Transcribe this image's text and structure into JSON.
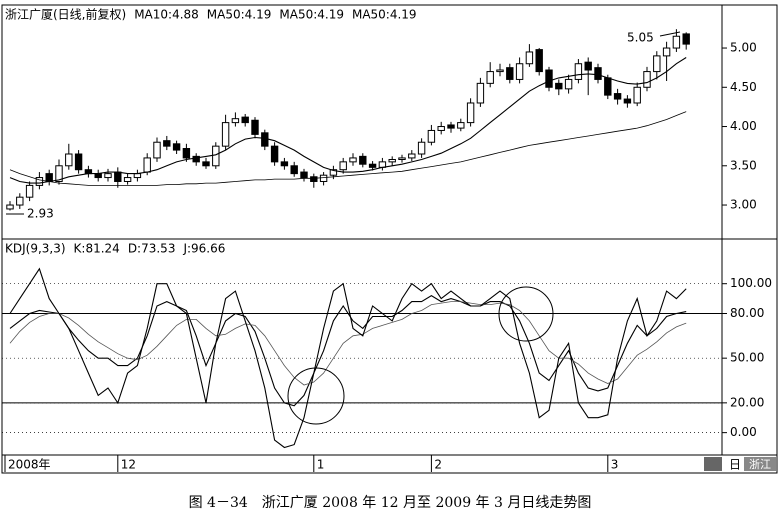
{
  "chart_data": [
    {
      "type": "candlestick",
      "title": "浙江广厦(日线,前复权)",
      "open": [
        2.95,
        3.0,
        3.1,
        3.25,
        3.4,
        3.3,
        3.5,
        3.65,
        3.45,
        3.4,
        3.35,
        3.42,
        3.3,
        3.35,
        3.42,
        3.6,
        3.82,
        3.78,
        3.72,
        3.62,
        3.55,
        3.5,
        3.75,
        4.05,
        4.12,
        4.08,
        3.92,
        3.75,
        3.55,
        3.5,
        3.42,
        3.36,
        3.3,
        3.38,
        3.45,
        3.55,
        3.62,
        3.52,
        3.48,
        3.55,
        3.58,
        3.6,
        3.65,
        3.8,
        3.95,
        4.02,
        3.98,
        4.05,
        4.3,
        4.55,
        4.7,
        4.75,
        4.6,
        4.8,
        4.98,
        4.72,
        4.55,
        4.48,
        4.6,
        4.82,
        4.75,
        4.62,
        4.42,
        4.35,
        4.3,
        4.5,
        4.7,
        4.9,
        5.0,
        5.18
      ],
      "high": [
        3.05,
        3.15,
        3.3,
        3.42,
        3.45,
        3.58,
        3.78,
        3.7,
        3.5,
        3.45,
        3.46,
        3.48,
        3.4,
        3.45,
        3.66,
        3.86,
        3.88,
        3.82,
        3.78,
        3.66,
        3.6,
        3.8,
        4.15,
        4.18,
        4.16,
        4.12,
        3.96,
        3.8,
        3.6,
        3.55,
        3.46,
        3.4,
        3.42,
        3.5,
        3.6,
        3.66,
        3.66,
        3.56,
        3.6,
        3.62,
        3.64,
        3.7,
        3.85,
        4.02,
        4.06,
        4.06,
        4.1,
        4.36,
        4.62,
        4.82,
        4.8,
        4.8,
        4.88,
        5.05,
        5.0,
        4.76,
        4.6,
        4.66,
        4.86,
        4.88,
        4.8,
        4.66,
        4.48,
        4.4,
        4.56,
        4.76,
        4.96,
        5.08,
        5.24,
        5.2
      ],
      "low": [
        2.93,
        2.95,
        3.05,
        3.2,
        3.25,
        3.26,
        3.45,
        3.4,
        3.35,
        3.3,
        3.3,
        3.22,
        3.26,
        3.3,
        3.38,
        3.55,
        3.7,
        3.65,
        3.55,
        3.5,
        3.46,
        3.46,
        3.7,
        4.0,
        4.0,
        3.85,
        3.7,
        3.5,
        3.45,
        3.36,
        3.3,
        3.22,
        3.25,
        3.33,
        3.4,
        3.5,
        3.48,
        3.44,
        3.44,
        3.5,
        3.54,
        3.56,
        3.6,
        3.76,
        3.9,
        3.92,
        3.94,
        4.0,
        4.25,
        4.5,
        4.64,
        4.55,
        4.55,
        4.76,
        4.65,
        4.45,
        4.4,
        4.42,
        4.55,
        4.4,
        4.55,
        4.35,
        4.28,
        4.24,
        4.26,
        4.45,
        4.6,
        4.58,
        4.95,
        4.98
      ],
      "close": [
        3.0,
        3.1,
        3.25,
        3.35,
        3.3,
        3.5,
        3.65,
        3.45,
        3.4,
        3.35,
        3.4,
        3.3,
        3.35,
        3.4,
        3.6,
        3.8,
        3.75,
        3.7,
        3.6,
        3.55,
        3.5,
        3.75,
        4.05,
        4.1,
        4.05,
        3.9,
        3.75,
        3.55,
        3.5,
        3.4,
        3.35,
        3.3,
        3.38,
        3.45,
        3.55,
        3.6,
        3.52,
        3.48,
        3.55,
        3.58,
        3.6,
        3.65,
        3.8,
        3.95,
        4.0,
        3.98,
        4.05,
        4.3,
        4.55,
        4.7,
        4.72,
        4.6,
        4.8,
        4.95,
        4.7,
        4.5,
        4.48,
        4.6,
        4.8,
        4.72,
        4.6,
        4.4,
        4.35,
        4.3,
        4.5,
        4.7,
        4.9,
        5.0,
        5.15,
        5.05
      ],
      "series": [
        {
          "name": "MA10:4.88",
          "color": "#000000",
          "values": [
            3.35,
            3.3,
            3.28,
            3.28,
            3.3,
            3.32,
            3.36,
            3.38,
            3.4,
            3.4,
            3.42,
            3.42,
            3.4,
            3.4,
            3.42,
            3.45,
            3.5,
            3.55,
            3.58,
            3.6,
            3.62,
            3.64,
            3.7,
            3.78,
            3.84,
            3.86,
            3.85,
            3.82,
            3.76,
            3.7,
            3.62,
            3.55,
            3.48,
            3.44,
            3.42,
            3.42,
            3.43,
            3.45,
            3.48,
            3.5,
            3.52,
            3.55,
            3.58,
            3.62,
            3.66,
            3.72,
            3.78,
            3.85,
            3.95,
            4.05,
            4.15,
            4.25,
            4.35,
            4.45,
            4.52,
            4.58,
            4.62,
            4.64,
            4.66,
            4.67,
            4.66,
            4.62,
            4.58,
            4.55,
            4.54,
            4.56,
            4.62,
            4.7,
            4.8,
            4.88
          ]
        },
        {
          "name": "MA50:4.19",
          "color": "#000000",
          "values": [
            3.45,
            3.4,
            3.36,
            3.32,
            3.3,
            3.28,
            3.27,
            3.26,
            3.25,
            3.25,
            3.25,
            3.25,
            3.25,
            3.25,
            3.25,
            3.25,
            3.26,
            3.26,
            3.27,
            3.27,
            3.28,
            3.28,
            3.29,
            3.3,
            3.31,
            3.32,
            3.32,
            3.33,
            3.33,
            3.33,
            3.34,
            3.34,
            3.35,
            3.36,
            3.37,
            3.38,
            3.39,
            3.4,
            3.41,
            3.42,
            3.43,
            3.45,
            3.47,
            3.49,
            3.51,
            3.53,
            3.55,
            3.58,
            3.61,
            3.64,
            3.67,
            3.7,
            3.73,
            3.76,
            3.78,
            3.8,
            3.82,
            3.84,
            3.86,
            3.88,
            3.9,
            3.92,
            3.94,
            3.96,
            3.98,
            4.01,
            4.05,
            4.09,
            4.14,
            4.19
          ]
        }
      ],
      "legend_extra": [
        "MA50:4.19",
        "MA50:4.19"
      ],
      "annotations": [
        "2.93",
        "5.05"
      ],
      "ylim": [
        2.58,
        5.51
      ],
      "yticks": [
        {
          "value": 3,
          "label": "3.00"
        },
        {
          "value": 3.5,
          "label": "3.50"
        },
        {
          "value": 4,
          "label": "4.00"
        },
        {
          "value": 4.5,
          "label": "4.50"
        },
        {
          "value": 5,
          "label": "5.00"
        }
      ],
      "grid": false
    },
    {
      "type": "line",
      "title": "KDJ(9,3,3)",
      "categories": [
        "2008年",
        null,
        null,
        null,
        null,
        null,
        null,
        null,
        null,
        null,
        null,
        "12",
        null,
        null,
        null,
        null,
        null,
        null,
        null,
        null,
        null,
        null,
        null,
        null,
        null,
        null,
        null,
        null,
        null,
        null,
        null,
        "1",
        null,
        null,
        null,
        null,
        null,
        null,
        null,
        null,
        null,
        null,
        null,
        "2",
        null,
        null,
        null,
        null,
        null,
        null,
        null,
        null,
        null,
        null,
        null,
        null,
        null,
        null,
        null,
        null,
        null,
        "3",
        null,
        null,
        null,
        null,
        null,
        null,
        null,
        null
      ],
      "series": [
        {
          "name": "K:81.24",
          "color": "#000000",
          "values": [
            70,
            75,
            80,
            82,
            81,
            80,
            70,
            62,
            55,
            50,
            50,
            45,
            45,
            50,
            65,
            85,
            88,
            85,
            82,
            65,
            45,
            60,
            75,
            80,
            78,
            68,
            50,
            30,
            20,
            18,
            25,
            40,
            55,
            75,
            85,
            75,
            70,
            78,
            78,
            78,
            82,
            88,
            88,
            92,
            88,
            90,
            88,
            85,
            85,
            88,
            88,
            85,
            75,
            60,
            40,
            35,
            45,
            55,
            40,
            30,
            28,
            30,
            45,
            60,
            72,
            65,
            70,
            78,
            80,
            81.24
          ]
        },
        {
          "name": "D:73.53",
          "color": "#555555",
          "values": [
            60,
            68,
            74,
            78,
            80,
            80,
            77,
            72,
            66,
            61,
            57,
            53,
            50,
            49,
            52,
            58,
            65,
            72,
            76,
            76,
            70,
            65,
            66,
            70,
            73,
            72,
            65,
            55,
            45,
            37,
            32,
            34,
            40,
            50,
            60,
            65,
            66,
            70,
            72,
            74,
            76,
            80,
            82,
            86,
            87,
            88,
            88,
            87,
            86,
            86,
            87,
            86,
            82,
            75,
            65,
            55,
            50,
            50,
            46,
            40,
            36,
            33,
            36,
            44,
            52,
            56,
            61,
            67,
            71,
            73.53
          ]
        },
        {
          "name": "J:96.66",
          "color": "#000000",
          "values": [
            80,
            90,
            100,
            110,
            90,
            80,
            70,
            55,
            40,
            25,
            30,
            20,
            40,
            45,
            70,
            100,
            100,
            85,
            80,
            50,
            20,
            60,
            90,
            95,
            75,
            55,
            30,
            -5,
            -10,
            -8,
            10,
            40,
            70,
            95,
            100,
            70,
            65,
            85,
            80,
            75,
            90,
            100,
            95,
            100,
            90,
            95,
            90,
            85,
            85,
            90,
            95,
            90,
            60,
            40,
            10,
            15,
            50,
            60,
            20,
            10,
            10,
            12,
            50,
            75,
            90,
            65,
            75,
            95,
            90,
            96.66
          ]
        }
      ],
      "hlines": [
        20,
        80
      ],
      "ylim": [
        -13,
        128
      ],
      "yticks": [
        {
          "value": 0,
          "label": "0.00"
        },
        {
          "value": 20,
          "label": "20.00"
        },
        {
          "value": 50,
          "label": "50.00"
        },
        {
          "value": 80,
          "label": "80.00"
        },
        {
          "value": 100,
          "label": "100.00"
        }
      ],
      "grid": true
    }
  ],
  "corner_labels": [
    "日",
    "浙江"
  ],
  "caption": "图 4－34　浙江广厦 2008 年 12 月至 2009 年 3 月日线走势图"
}
